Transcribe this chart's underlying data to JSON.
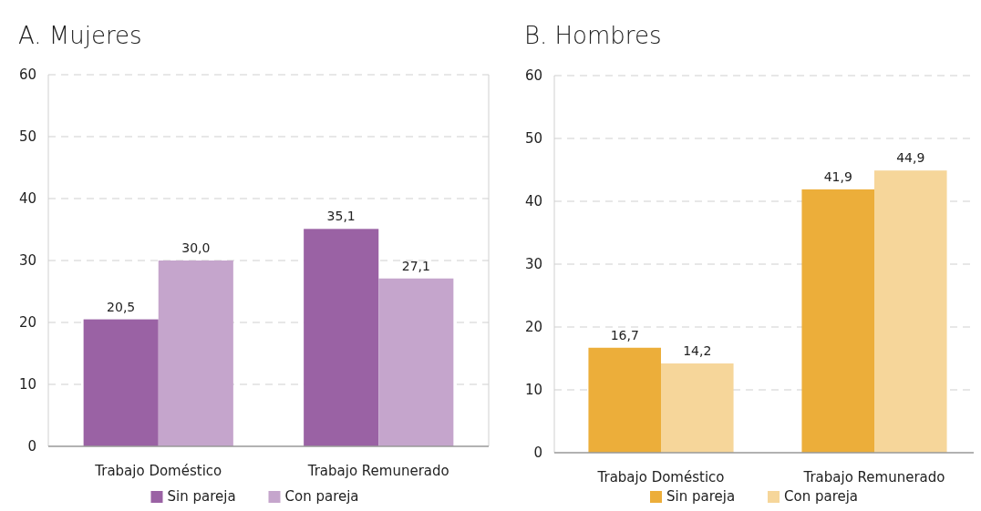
{
  "chart_data": [
    {
      "type": "bar",
      "title": "A. Mujeres",
      "categories": [
        "Trabajo Doméstico",
        "Trabajo Remunerado"
      ],
      "ylim": [
        0,
        60
      ],
      "yticks": [
        0,
        10,
        20,
        30,
        40,
        50,
        60
      ],
      "grid": "y",
      "legend": "bottom",
      "series": [
        {
          "name": "Sin pareja",
          "color": "#9a62a4",
          "values": [
            20.5,
            35.1
          ],
          "value_labels": [
            "20,5",
            "35,1"
          ]
        },
        {
          "name": "Con pareja",
          "color": "#c5a5cc",
          "values": [
            30.0,
            27.1
          ],
          "value_labels": [
            "30,0",
            "27,1"
          ]
        }
      ]
    },
    {
      "type": "bar",
      "title": "B. Hombres",
      "categories": [
        "Trabajo Doméstico",
        "Trabajo Remunerado"
      ],
      "ylim": [
        0,
        60
      ],
      "yticks": [
        0,
        10,
        20,
        30,
        40,
        50,
        60
      ],
      "grid": "y",
      "legend": "bottom",
      "series": [
        {
          "name": "Sin pareja",
          "color": "#ecae3a",
          "values": [
            16.7,
            41.9
          ],
          "value_labels": [
            "16,7",
            "41,9"
          ]
        },
        {
          "name": "Con pareja",
          "color": "#f6d69a",
          "values": [
            14.2,
            44.9
          ],
          "value_labels": [
            "14,2",
            "44,9"
          ]
        }
      ]
    }
  ]
}
